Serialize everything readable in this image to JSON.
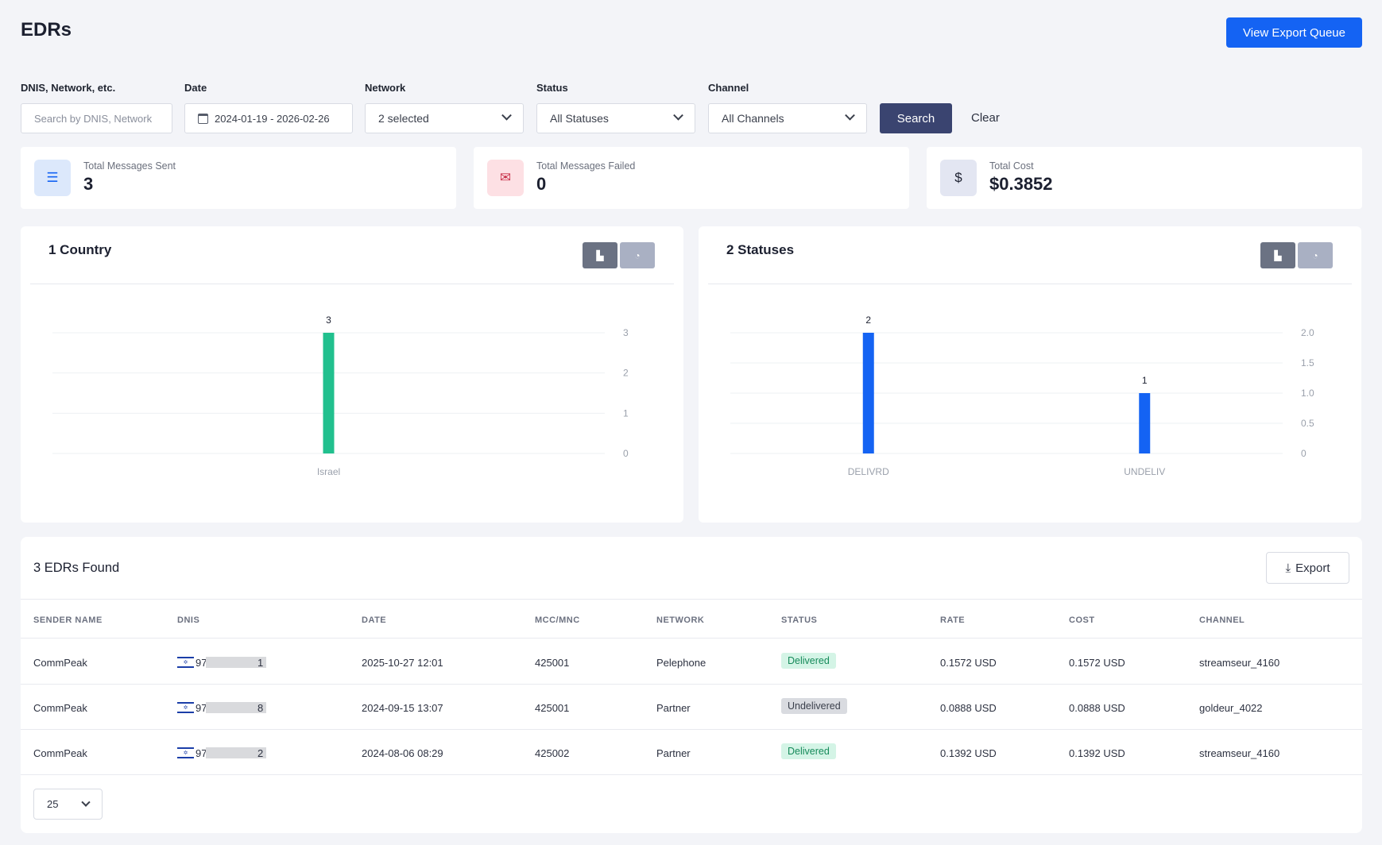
{
  "page": {
    "title": "EDRs",
    "export_queue_label": "View Export Queue"
  },
  "filters": {
    "search": {
      "label": "DNIS, Network, etc.",
      "placeholder": "Search by DNIS, Network"
    },
    "date": {
      "label": "Date",
      "value": "2024-01-19 - 2026-02-26"
    },
    "network": {
      "label": "Network",
      "value": "2 selected"
    },
    "status": {
      "label": "Status",
      "value": "All Statuses"
    },
    "channel": {
      "label": "Channel",
      "value": "All Channels"
    },
    "search_label": "Search",
    "clear_label": "Clear"
  },
  "stats": [
    {
      "label": "Total Messages Sent",
      "value": "3",
      "icon": "checklist-icon",
      "color": "#dce8fb"
    },
    {
      "label": "Total Messages Failed",
      "value": "0",
      "icon": "message-error-icon",
      "color": "#fde0e4"
    },
    {
      "label": "Total Cost",
      "value": "$0.3852",
      "icon": "dollar-icon",
      "color": "#e3e6f2"
    }
  ],
  "charts": {
    "country": {
      "title": "1 Country"
    },
    "status": {
      "title": "2 Statuses"
    }
  },
  "chart_data": [
    {
      "type": "bar",
      "title": "1 Country",
      "categories": [
        "Israel"
      ],
      "values": [
        3
      ],
      "yticks": [
        "0",
        "1",
        "2",
        "3"
      ],
      "ylim": [
        0,
        3
      ],
      "color": "#21c08e",
      "grid": true
    },
    {
      "type": "bar",
      "title": "2 Statuses",
      "categories": [
        "DELIVRD",
        "UNDELIV"
      ],
      "values": [
        2,
        1
      ],
      "yticks": [
        "0",
        "0.5",
        "1.0",
        "1.5",
        "2.0"
      ],
      "ylim": [
        0,
        2
      ],
      "color": "#1463f3",
      "grid": true
    }
  ],
  "table": {
    "title": "3 EDRs Found",
    "export_label": "Export",
    "columns": [
      "SENDER NAME",
      "DNIS",
      "DATE",
      "MCC/MNC",
      "NETWORK",
      "STATUS",
      "RATE",
      "COST",
      "CHANNEL"
    ],
    "rows": [
      {
        "sender": "CommPeak",
        "dnis_prefix": "97",
        "dnis_suffix": "1",
        "date": "2025-10-27 12:01",
        "mccmnc": "425001",
        "network": "Pelephone",
        "status": "Delivered",
        "rate": "0.1572 USD",
        "cost": "0.1572 USD",
        "channel": "streamseur_4160"
      },
      {
        "sender": "CommPeak",
        "dnis_prefix": "97",
        "dnis_suffix": "8",
        "date": "2024-09-15 13:07",
        "mccmnc": "425001",
        "network": "Partner",
        "status": "Undelivered",
        "rate": "0.0888 USD",
        "cost": "0.0888 USD",
        "channel": "goldeur_4022"
      },
      {
        "sender": "CommPeak",
        "dnis_prefix": "97",
        "dnis_suffix": "2",
        "date": "2024-08-06 08:29",
        "mccmnc": "425002",
        "network": "Partner",
        "status": "Delivered",
        "rate": "0.1392 USD",
        "cost": "0.1392 USD",
        "channel": "streamseur_4160"
      }
    ],
    "page_size": "25"
  }
}
